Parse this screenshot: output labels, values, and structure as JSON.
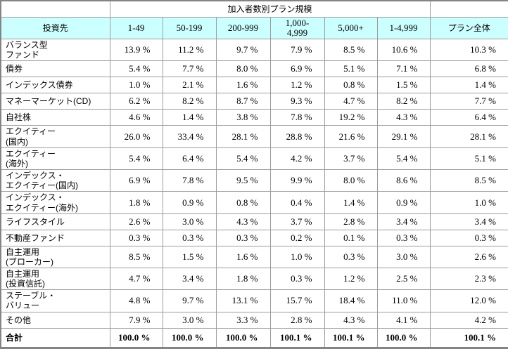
{
  "colors": {
    "header_background": "#ccffff",
    "grid_border": "#9c9c9c",
    "outer_border": "#848484",
    "text": "#000000"
  },
  "table": {
    "span_header": "加入者数別プラン規模",
    "investment_header": "投資先",
    "size_columns": [
      "1-49",
      "50-199",
      "200-999",
      "1,000-\n4,999",
      "5,000+",
      "1-4,999"
    ],
    "overall_column": "プラン全体",
    "rows": [
      {
        "label": "バランス型\nファンド",
        "values": [
          "13.9 %",
          "11.2 %",
          "9.7 %",
          "7.9 %",
          "8.5 %",
          "10.6 %",
          "10.3 %"
        ]
      },
      {
        "label": "債券",
        "values": [
          "5.4 %",
          "7.7 %",
          "8.0 %",
          "6.9 %",
          "5.1 %",
          "7.1 %",
          "6.8 %"
        ]
      },
      {
        "label": "インデックス債券",
        "values": [
          "1.0 %",
          "2.1 %",
          "1.6 %",
          "1.2 %",
          "0.8 %",
          "1.5 %",
          "1.4 %"
        ]
      },
      {
        "label": "マネーマーケット(CD)",
        "values": [
          "6.2 %",
          "8.2 %",
          "8.7 %",
          "9.3 %",
          "4.7 %",
          "8.2 %",
          "7.7 %"
        ]
      },
      {
        "label": "自社株",
        "values": [
          "4.6 %",
          "1.4 %",
          "3.8 %",
          "7.8 %",
          "19.2 %",
          "4.3 %",
          "6.4 %"
        ]
      },
      {
        "label": "エクイティー\n(国内)",
        "values": [
          "26.0 %",
          "33.4 %",
          "28.1 %",
          "28.8 %",
          "21.6 %",
          "29.1 %",
          "28.1 %"
        ]
      },
      {
        "label": "エクイティー\n(海外)",
        "values": [
          "5.4 %",
          "6.4 %",
          "5.4 %",
          "4.2 %",
          "3.7 %",
          "5.4 %",
          "5.1 %"
        ]
      },
      {
        "label": "インデックス・\nエクイティー(国内)",
        "values": [
          "6.9 %",
          "7.8 %",
          "9.5 %",
          "9.9 %",
          "8.0 %",
          "8.6 %",
          "8.5 %"
        ]
      },
      {
        "label": "インデックス・\nエクイティー(海外)",
        "values": [
          "1.8 %",
          "0.9 %",
          "0.8 %",
          "0.4 %",
          "1.4 %",
          "0.9 %",
          "1.0 %"
        ]
      },
      {
        "label": "ライフスタイル",
        "values": [
          "2.6 %",
          "3.0 %",
          "4.3 %",
          "3.7 %",
          "2.8 %",
          "3.4 %",
          "3.4 %"
        ]
      },
      {
        "label": "不動産ファンド",
        "values": [
          "0.3 %",
          "0.3 %",
          "0.3 %",
          "0.2 %",
          "0.1 %",
          "0.3 %",
          "0.3 %"
        ]
      },
      {
        "label": "自主運用\n(ブローカー)",
        "values": [
          "8.5 %",
          "1.5 %",
          "1.6 %",
          "1.0 %",
          "0.3 %",
          "3.0 %",
          "2.6 %"
        ]
      },
      {
        "label": "自主運用\n(投資信託)",
        "values": [
          "4.7 %",
          "3.4 %",
          "1.8 %",
          "0.3 %",
          "1.2 %",
          "2.5 %",
          "2.3 %"
        ]
      },
      {
        "label": "ステーブル・\nバリュー",
        "values": [
          "4.8 %",
          "9.7 %",
          "13.1 %",
          "15.7 %",
          "18.4 %",
          "11.0 %",
          "12.0 %"
        ]
      },
      {
        "label": "その他",
        "values": [
          "7.9 %",
          "3.0 %",
          "3.3 %",
          "2.8 %",
          "4.3 %",
          "4.1 %",
          "4.2 %"
        ]
      }
    ],
    "total_row": {
      "label": "合計",
      "values": [
        "100.0 %",
        "100.0 %",
        "100.0 %",
        "100.1 %",
        "100.1 %",
        "100.0 %",
        "100.1 %"
      ]
    }
  }
}
